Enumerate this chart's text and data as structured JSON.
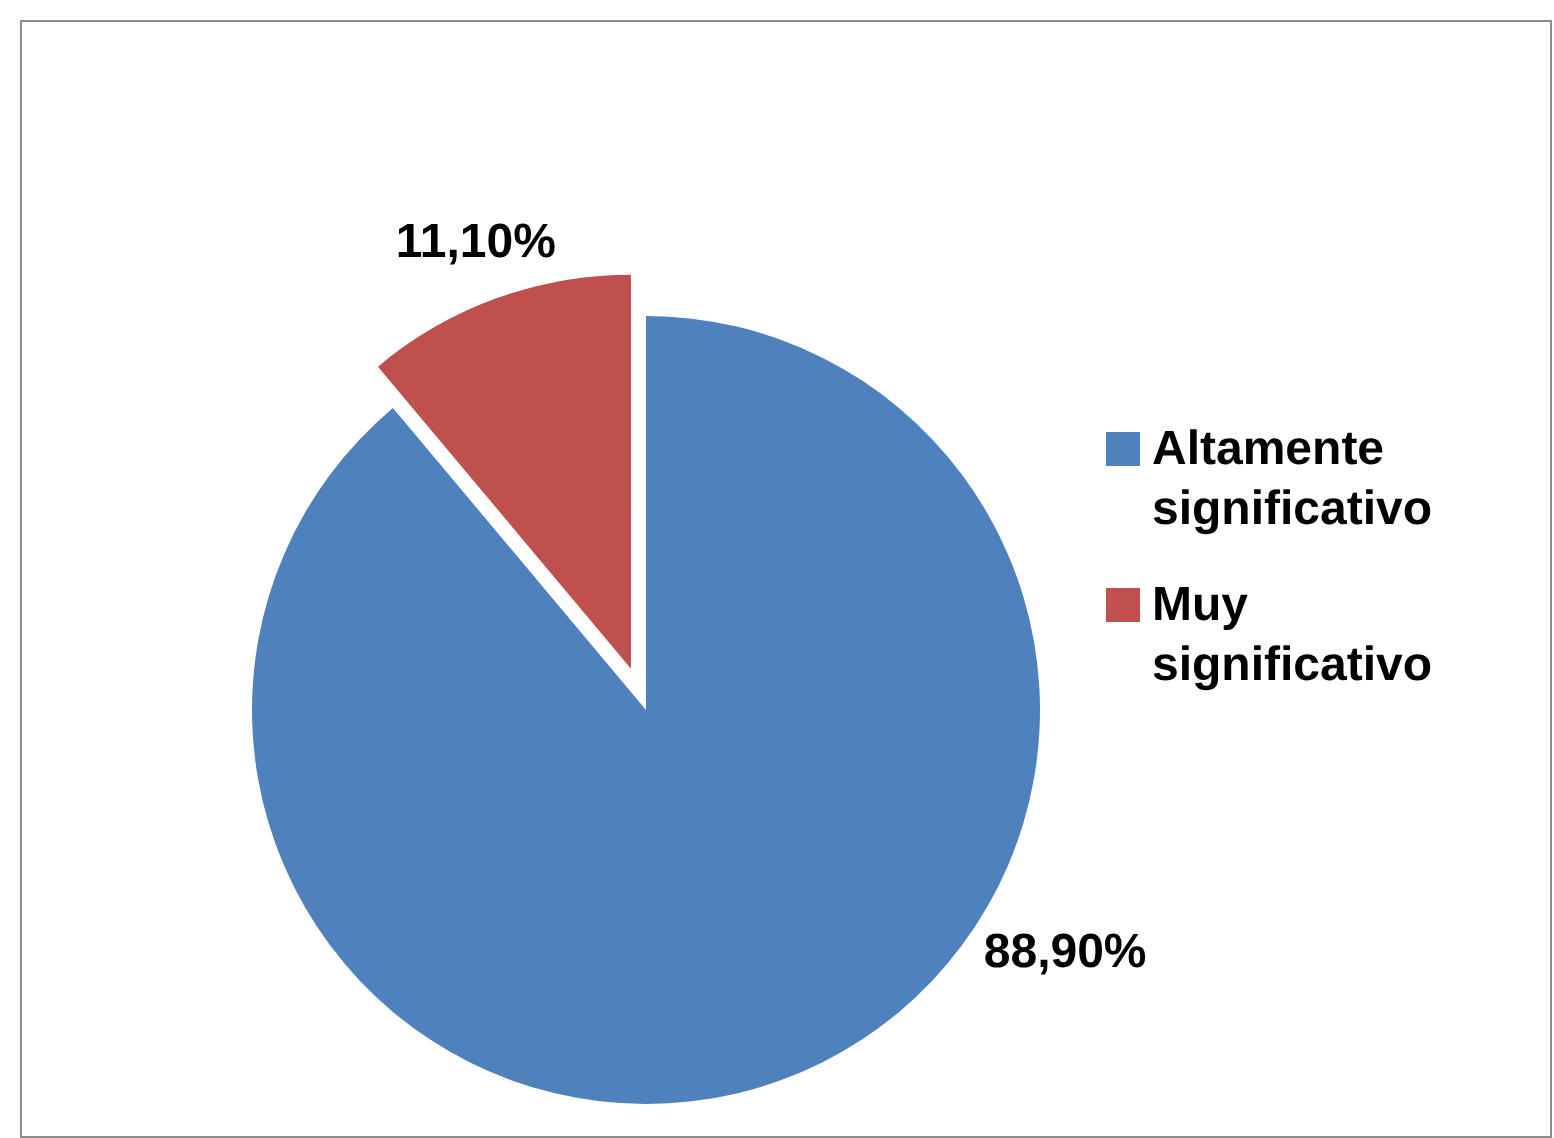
{
  "chart_data": {
    "type": "pie",
    "categories": [
      "Altamente significativo",
      "Muy significativo"
    ],
    "values": [
      88.9,
      11.1
    ],
    "colors": [
      "#4f81bd",
      "#c0504d"
    ],
    "value_labels": [
      "88,90%",
      "11,10%"
    ],
    "legend": "right"
  }
}
